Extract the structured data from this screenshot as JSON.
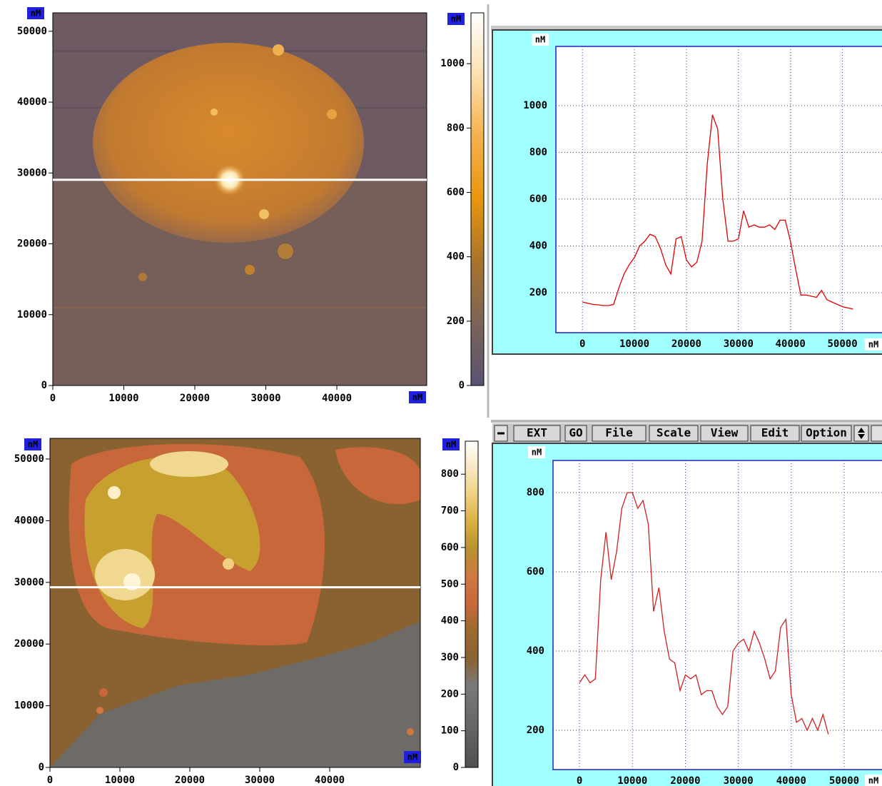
{
  "chart_data": [
    {
      "type": "image",
      "x_unit": "nM",
      "y_unit": "nM",
      "xlim": [
        0,
        52660
      ],
      "ylim": [
        0,
        52600
      ],
      "xticks": [
        0,
        10000,
        20000,
        30000,
        40000
      ],
      "yticks": [
        0,
        10000,
        20000,
        30000,
        40000,
        50000
      ],
      "cursor_y": 29030,
      "colorbar": {
        "unit": "nM",
        "lim": [
          0,
          1158
        ],
        "ticks": [
          0,
          200,
          400,
          600,
          800,
          1000
        ],
        "colormap": [
          "#5a5272",
          "#7a6458",
          "#a8742c",
          "#e8960c",
          "#f4b04c",
          "#fbe0b0",
          "#ffffff"
        ]
      }
    },
    {
      "type": "line",
      "x_unit": "nM",
      "y_unit": "nM",
      "grid": true,
      "color": "#e00000",
      "xlim": [
        -5100,
        59800
      ],
      "ylim": [
        29,
        1253
      ],
      "xticks": [
        0,
        10000,
        20000,
        30000,
        40000,
        50000
      ],
      "yticks": [
        200,
        400,
        600,
        800,
        1000
      ],
      "x": [
        0,
        1000,
        2000,
        3000,
        4000,
        5000,
        6000,
        7000,
        8000,
        9000,
        10000,
        11000,
        12000,
        13000,
        14000,
        15000,
        16000,
        17000,
        18000,
        19000,
        20000,
        21000,
        22000,
        23000,
        24000,
        25000,
        26000,
        27000,
        28000,
        29000,
        30000,
        31000,
        32000,
        33000,
        34000,
        35000,
        36000,
        37000,
        38000,
        39000,
        40000,
        41000,
        42000,
        43000,
        44000,
        45000,
        46000,
        47000,
        48000,
        49000,
        50000,
        51000,
        52000
      ],
      "values": [
        160,
        155,
        150,
        148,
        145,
        145,
        150,
        220,
        280,
        320,
        350,
        400,
        420,
        450,
        440,
        390,
        320,
        280,
        430,
        440,
        340,
        310,
        330,
        420,
        750,
        960,
        900,
        600,
        420,
        420,
        430,
        550,
        480,
        490,
        480,
        480,
        490,
        470,
        510,
        510,
        420,
        300,
        190,
        190,
        185,
        180,
        210,
        170,
        160,
        150,
        140,
        135,
        130
      ]
    },
    {
      "type": "image",
      "x_unit": "nM",
      "y_unit": "nM",
      "xlim": [
        0,
        52960
      ],
      "ylim": [
        0,
        53350
      ],
      "xticks": [
        0,
        10000,
        20000,
        30000,
        40000
      ],
      "yticks": [
        0,
        10000,
        20000,
        30000,
        40000,
        50000
      ],
      "cursor_y": 29200,
      "colorbar": {
        "unit": "nM",
        "lim": [
          0,
          890
        ],
        "ticks": [
          0,
          100,
          200,
          300,
          400,
          500,
          600,
          700,
          800
        ],
        "colormap": [
          "#505050",
          "#5e5e5e",
          "#6c6c6c",
          "#7a7a7a",
          "#8a6232",
          "#9a6a30",
          "#c8683a",
          "#d07840",
          "#b89030",
          "#d8b040",
          "#f0d080",
          "#f8e8c0",
          "#ffffff"
        ]
      }
    },
    {
      "type": "line",
      "x_unit": "nM",
      "y_unit": "nM",
      "grid": true,
      "color": "#d02020",
      "xlim": [
        -5000,
        59300
      ],
      "ylim": [
        101,
        881
      ],
      "xticks": [
        0,
        10000,
        20000,
        30000,
        40000,
        50000
      ],
      "yticks": [
        200,
        400,
        600,
        800
      ],
      "x": [
        0,
        1000,
        2000,
        3000,
        4000,
        5000,
        6000,
        7000,
        8000,
        9000,
        10000,
        11000,
        12000,
        13000,
        14000,
        15000,
        16000,
        17000,
        18000,
        19000,
        20000,
        21000,
        22000,
        23000,
        24000,
        25000,
        26000,
        27000,
        28000,
        29000,
        30000,
        31000,
        32000,
        33000,
        34000,
        35000,
        36000,
        37000,
        38000,
        39000,
        40000,
        41000,
        42000,
        43000,
        44000,
        45000,
        46000,
        47000
      ],
      "values": [
        320,
        340,
        320,
        330,
        580,
        700,
        580,
        650,
        760,
        800,
        800,
        760,
        780,
        720,
        500,
        560,
        450,
        380,
        370,
        300,
        340,
        330,
        340,
        290,
        300,
        300,
        260,
        240,
        260,
        400,
        420,
        430,
        400,
        450,
        420,
        380,
        330,
        350,
        460,
        480,
        290,
        220,
        230,
        200,
        230,
        200,
        240,
        190
      ]
    }
  ],
  "toolbar": [
    "EXT",
    "GO",
    "File",
    "Scale",
    "View",
    "Edit",
    "Option"
  ]
}
